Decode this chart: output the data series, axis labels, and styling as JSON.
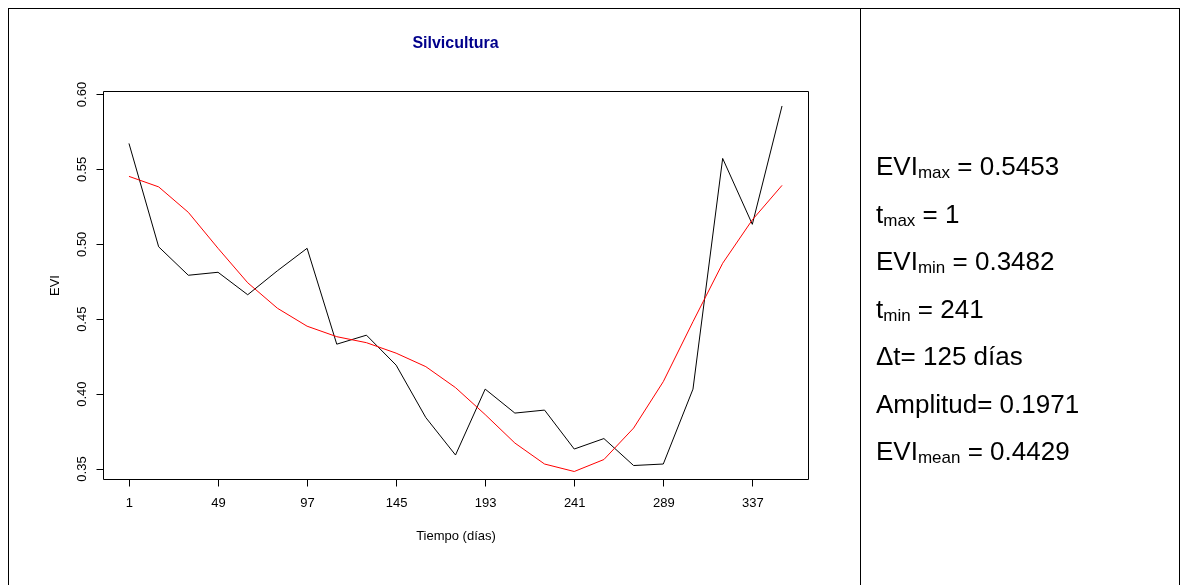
{
  "chart_data": {
    "type": "line",
    "title": "Silvicultura",
    "xlabel": "Tiempo (días)",
    "ylabel": "EVI",
    "x": [
      1,
      17,
      33,
      49,
      65,
      81,
      97,
      113,
      129,
      145,
      161,
      177,
      193,
      209,
      225,
      241,
      257,
      273,
      289,
      305,
      321,
      337,
      353
    ],
    "series": [
      {
        "color": "#000000",
        "values": [
          0.567,
          0.498,
          0.479,
          0.481,
          0.466,
          0.482,
          0.497,
          0.433,
          0.439,
          0.419,
          0.384,
          0.359,
          0.403,
          0.387,
          0.389,
          0.363,
          0.37,
          0.352,
          0.353,
          0.403,
          0.557,
          0.513,
          0.592
        ]
      },
      {
        "color": "#ff0000",
        "values": [
          0.545,
          0.538,
          0.521,
          0.497,
          0.474,
          0.457,
          0.445,
          0.438,
          0.434,
          0.427,
          0.418,
          0.404,
          0.386,
          0.367,
          0.353,
          0.348,
          0.356,
          0.377,
          0.408,
          0.448,
          0.487,
          0.516,
          0.539
        ]
      }
    ],
    "xlim": [
      -13,
      367
    ],
    "xticks": [
      1,
      49,
      97,
      145,
      193,
      241,
      289,
      337
    ],
    "ylim": [
      0.343,
      0.602
    ],
    "yticks": [
      0.35,
      0.45,
      0.55,
      {
        "value": 0.4,
        "label": "0.40"
      },
      {
        "value": 0.5,
        "label": "0.50"
      },
      {
        "value": 0.6,
        "label": "0.60"
      }
    ],
    "grid": false,
    "legend": false,
    "marker": "none",
    "line_style": "solid",
    "annotations": [
      "EVI$_{max}$ = 0.5453",
      "t$_{max}$ = 1",
      "EVI$_{min}$ = 0.3482",
      "t$_{min}$ = 241",
      "Δt= 125 días",
      "Amplitud= 0.1971",
      "EVI$_{mean}$ = 0.4429"
    ]
  }
}
